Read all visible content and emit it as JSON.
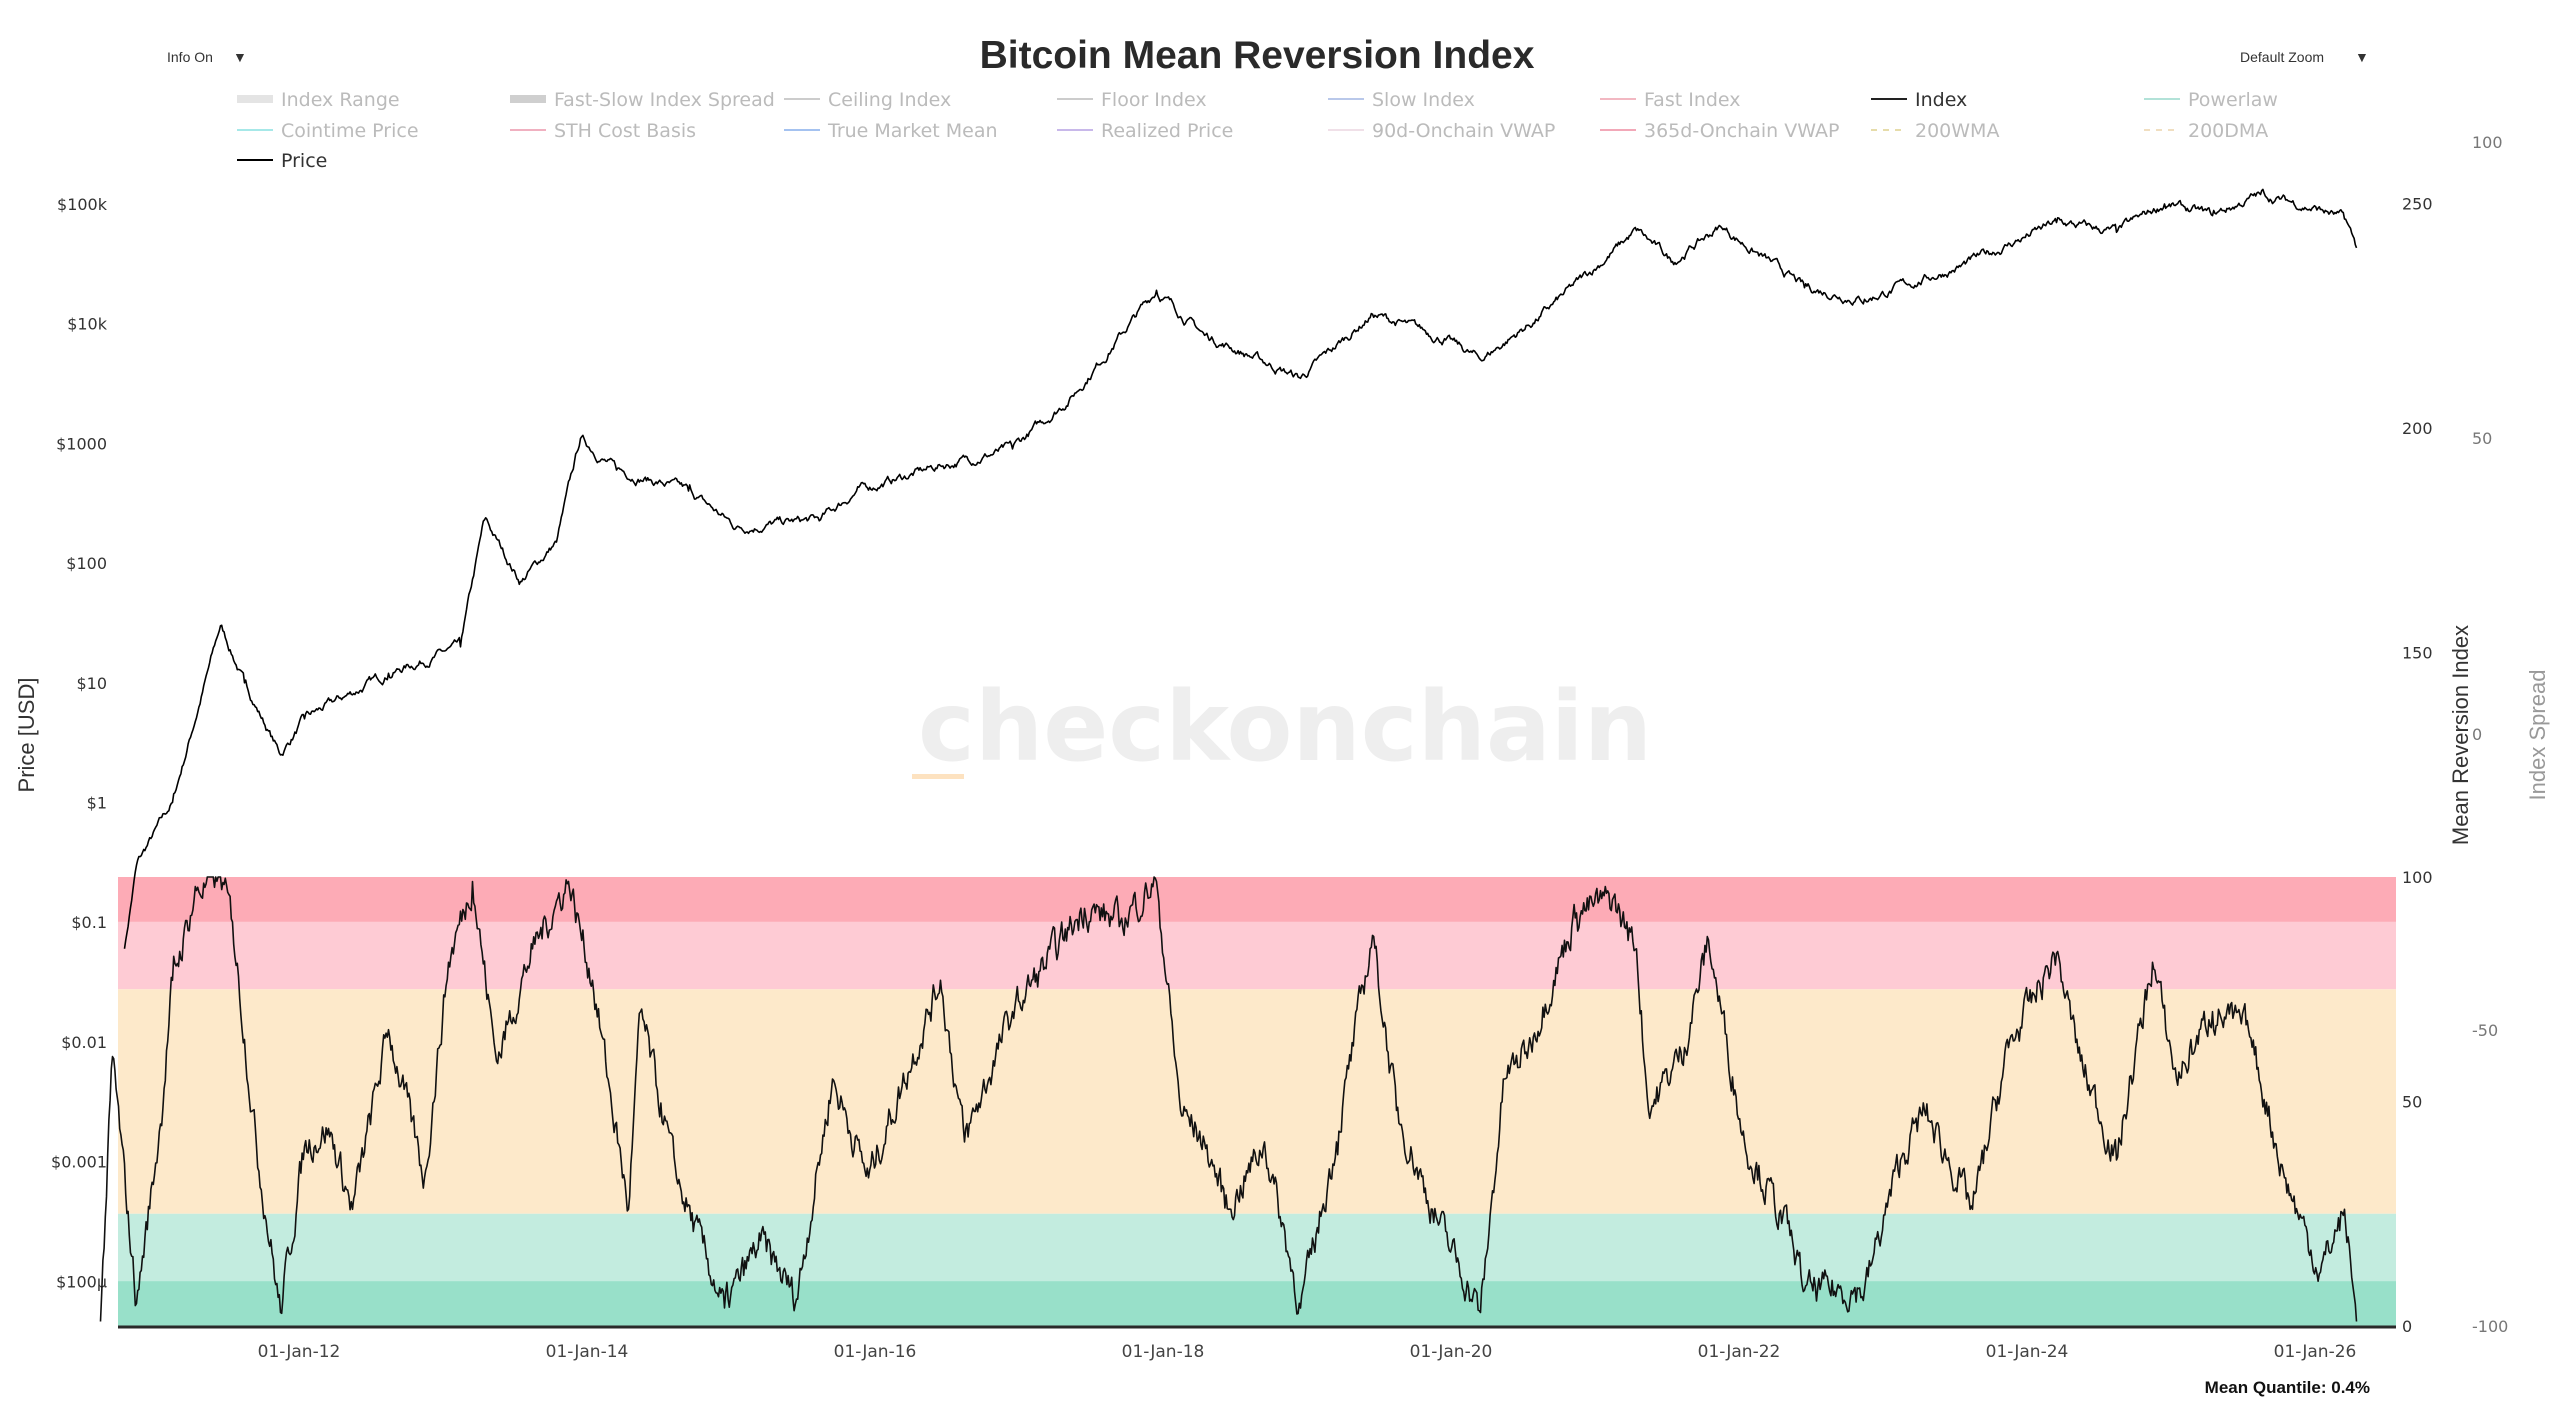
{
  "header": {
    "title": "Bitcoin Mean Reversion Index",
    "info_toggle": "Info On",
    "zoom_select": "Default Zoom",
    "dropdown_glyph": "▼"
  },
  "watermark": "checkonchain",
  "footer": {
    "mean_quantile": "Mean Quantile: 0.4%"
  },
  "legend": [
    {
      "label": "Index Range",
      "color": "#e4e4e4",
      "style": "block",
      "active": false
    },
    {
      "label": "Fast-Slow Index Spread",
      "color": "#cfcfcf",
      "style": "block",
      "active": false
    },
    {
      "label": "Ceiling Index",
      "color": "#cccccc",
      "style": "line",
      "active": false
    },
    {
      "label": "Floor Index",
      "color": "#cccccc",
      "style": "line",
      "active": false
    },
    {
      "label": "Slow Index",
      "color": "#b9c8ea",
      "style": "line",
      "active": false
    },
    {
      "label": "Fast Index",
      "color": "#f2b8c2",
      "style": "line",
      "active": false
    },
    {
      "label": "Index",
      "color": "#222222",
      "style": "line",
      "active": true
    },
    {
      "label": "Powerlaw",
      "color": "#b2e2d8",
      "style": "line",
      "active": false
    },
    {
      "label": "Cointime Price",
      "color": "#a6e8e8",
      "style": "line",
      "active": false
    },
    {
      "label": "STH Cost Basis",
      "color": "#f0b0c0",
      "style": "line",
      "active": false
    },
    {
      "label": "True Market Mean",
      "color": "#a4c2f0",
      "style": "line",
      "active": false
    },
    {
      "label": "Realized Price",
      "color": "#c8b8ea",
      "style": "line",
      "active": false
    },
    {
      "label": "90d-Onchain VWAP",
      "color": "#f0e0e8",
      "style": "line",
      "active": false
    },
    {
      "label": "365d-Onchain VWAP",
      "color": "#f2a8b8",
      "style": "line",
      "active": false
    },
    {
      "label": "200WMA",
      "color": "#e6dcaa",
      "style": "dash",
      "active": false
    },
    {
      "label": "200DMA",
      "color": "#f0dec0",
      "style": "dash",
      "active": false
    },
    {
      "label": "Price",
      "color": "#000000",
      "style": "line",
      "active": true
    }
  ],
  "chart_data": {
    "type": "line",
    "title": "Bitcoin Mean Reversion Index",
    "x_axis": {
      "type": "date",
      "range": [
        "2010-08",
        "2026-04"
      ],
      "tick_labels": [
        "01-Jan-12",
        "01-Jan-14",
        "01-Jan-16",
        "01-Jan-18",
        "01-Jan-20",
        "01-Jan-22",
        "01-Jan-24",
        "01-Jan-26"
      ],
      "tick_dates": [
        "2012-01-01",
        "2014-01-01",
        "2016-01-01",
        "2018-01-01",
        "2020-01-01",
        "2022-01-01",
        "2024-01-01",
        "2026-01-01"
      ]
    },
    "y_axis_left": {
      "label": "Price [USD]",
      "scale": "log",
      "range": [
        5e-05,
        200000
      ],
      "tick_labels": [
        "$100k",
        "$10k",
        "$1000",
        "$100",
        "$10",
        "$1",
        "$0.1",
        "$0.01",
        "$0.001",
        "$100µ"
      ],
      "tick_values": [
        100000,
        10000,
        1000,
        100,
        10,
        1,
        0.1,
        0.01,
        0.001,
        0.0001
      ]
    },
    "y_axis_right": {
      "label": "Mean Reversion Index",
      "range": [
        0,
        250
      ],
      "tick_values": [
        0,
        50,
        100,
        150,
        200,
        250
      ]
    },
    "y_axis_spread": {
      "label": "Index Spread",
      "range": [
        -100,
        110
      ],
      "tick_values": [
        -100,
        -50,
        0,
        50,
        100
      ]
    },
    "grid": false,
    "legend_placement": "top",
    "bands": [
      {
        "from": 90,
        "to": 100,
        "color": "#fdabb6"
      },
      {
        "from": 75,
        "to": 90,
        "color": "#fecbd4"
      },
      {
        "from": 25,
        "to": 75,
        "color": "#fde9ca"
      },
      {
        "from": 10,
        "to": 25,
        "color": "#c3ecdf"
      },
      {
        "from": 0,
        "to": 10,
        "color": "#98e0c9"
      }
    ],
    "series": [
      {
        "name": "Price",
        "axis": "left",
        "color": "#000000",
        "points": [
          [
            "2010-10",
            0.06
          ],
          [
            "2010-11",
            0.3
          ],
          [
            "2011-02",
            1
          ],
          [
            "2011-06",
            30
          ],
          [
            "2011-08",
            10
          ],
          [
            "2011-11",
            2.5
          ],
          [
            "2012-01",
            5
          ],
          [
            "2012-08",
            12
          ],
          [
            "2013-02",
            20
          ],
          [
            "2013-04",
            230
          ],
          [
            "2013-07",
            70
          ],
          [
            "2013-10",
            150
          ],
          [
            "2013-12",
            1100
          ],
          [
            "2014-03",
            600
          ],
          [
            "2014-09",
            400
          ],
          [
            "2015-01",
            200
          ],
          [
            "2015-08",
            230
          ],
          [
            "2015-11",
            400
          ],
          [
            "2016-06",
            650
          ],
          [
            "2016-12",
            900
          ],
          [
            "2017-05",
            2500
          ],
          [
            "2017-12",
            19000
          ],
          [
            "2018-04",
            8000
          ],
          [
            "2018-12",
            3500
          ],
          [
            "2019-06",
            12000
          ],
          [
            "2019-12",
            7500
          ],
          [
            "2020-03",
            5000
          ],
          [
            "2020-08",
            11500
          ],
          [
            "2021-04",
            60000
          ],
          [
            "2021-07",
            33000
          ],
          [
            "2021-11",
            65000
          ],
          [
            "2022-06",
            20000
          ],
          [
            "2022-11",
            16000
          ],
          [
            "2023-07",
            30000
          ],
          [
            "2024-03",
            70000
          ],
          [
            "2024-08",
            58000
          ],
          [
            "2024-12",
            100000
          ],
          [
            "2025-04",
            80000
          ],
          [
            "2025-08",
            120000
          ],
          [
            "2026-01",
            90000
          ],
          [
            "2026-03",
            75000
          ],
          [
            "2026-04",
            43000
          ]
        ]
      },
      {
        "name": "Index",
        "axis": "right",
        "color": "#111111",
        "points": [
          [
            "2010-08",
            1
          ],
          [
            "2010-09",
            60
          ],
          [
            "2010-11",
            5
          ],
          [
            "2011-01",
            45
          ],
          [
            "2011-02",
            77
          ],
          [
            "2011-04",
            97
          ],
          [
            "2011-06",
            100
          ],
          [
            "2011-07",
            90
          ],
          [
            "2011-09",
            40
          ],
          [
            "2011-11",
            3
          ],
          [
            "2012-01",
            40
          ],
          [
            "2012-03",
            44
          ],
          [
            "2012-05",
            26
          ],
          [
            "2012-08",
            66
          ],
          [
            "2012-11",
            33
          ],
          [
            "2013-01",
            81
          ],
          [
            "2013-03",
            99
          ],
          [
            "2013-05",
            59
          ],
          [
            "2013-08",
            84
          ],
          [
            "2013-11",
            99
          ],
          [
            "2014-01",
            77
          ],
          [
            "2014-04",
            26
          ],
          [
            "2014-05",
            70
          ],
          [
            "2014-08",
            33
          ],
          [
            "2014-12",
            4
          ],
          [
            "2015-03",
            19
          ],
          [
            "2015-06",
            6
          ],
          [
            "2015-09",
            55
          ],
          [
            "2015-12",
            33
          ],
          [
            "2016-06",
            77
          ],
          [
            "2016-08",
            41
          ],
          [
            "2016-12",
            70
          ],
          [
            "2017-06",
            93
          ],
          [
            "2017-09",
            90
          ],
          [
            "2017-12",
            99
          ],
          [
            "2018-02",
            48
          ],
          [
            "2018-04",
            41
          ],
          [
            "2018-06",
            26
          ],
          [
            "2018-09",
            41
          ],
          [
            "2018-12",
            4
          ],
          [
            "2019-03",
            41
          ],
          [
            "2019-06",
            87
          ],
          [
            "2019-08",
            48
          ],
          [
            "2019-11",
            26
          ],
          [
            "2020-03",
            3
          ],
          [
            "2020-05",
            55
          ],
          [
            "2020-07",
            62
          ],
          [
            "2020-11",
            92
          ],
          [
            "2021-02",
            95
          ],
          [
            "2021-04",
            84
          ],
          [
            "2021-05",
            48
          ],
          [
            "2021-08",
            62
          ],
          [
            "2021-10",
            86
          ],
          [
            "2022-01",
            41
          ],
          [
            "2022-05",
            19
          ],
          [
            "2022-06",
            8
          ],
          [
            "2022-11",
            8
          ],
          [
            "2023-02",
            37
          ],
          [
            "2023-04",
            48
          ],
          [
            "2023-08",
            26
          ],
          [
            "2023-11",
            62
          ],
          [
            "2024-03",
            83
          ],
          [
            "2024-05",
            59
          ],
          [
            "2024-08",
            37
          ],
          [
            "2024-11",
            81
          ],
          [
            "2025-01",
            55
          ],
          [
            "2025-04",
            70
          ],
          [
            "2025-07",
            66
          ],
          [
            "2025-10",
            33
          ],
          [
            "2026-01",
            12
          ],
          [
            "2026-03",
            26
          ],
          [
            "2026-04",
            1
          ]
        ]
      }
    ]
  }
}
